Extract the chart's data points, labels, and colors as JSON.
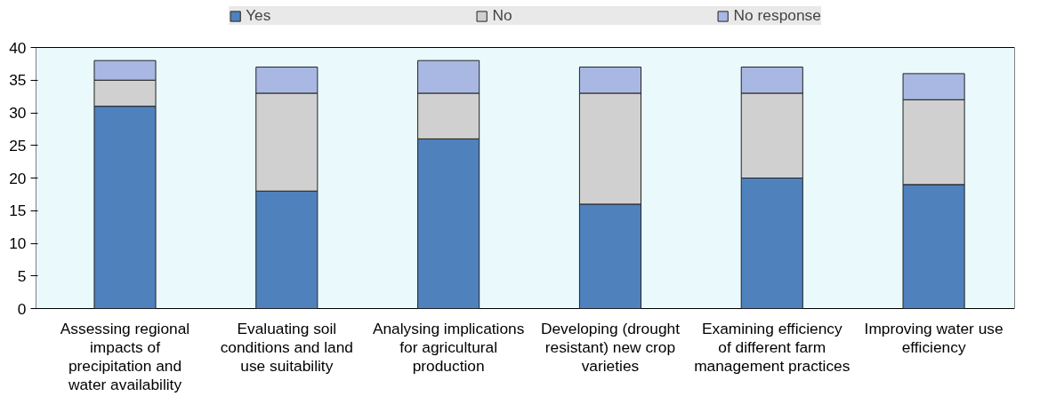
{
  "chart_data": {
    "type": "bar",
    "stacked": true,
    "categories": [
      "Assessing regional impacts of precipitation and water availability",
      "Evaluating soil conditions and land use suitability",
      "Analysing implications for agricultural production",
      "Developing (drought resistant) new crop varieties",
      "Examining efficiency of different farm management practices",
      "Improving water use efficiency"
    ],
    "series": [
      {
        "name": "Yes",
        "color": "#4f81bd",
        "values": [
          31,
          18,
          26,
          16,
          20,
          19
        ]
      },
      {
        "name": "No",
        "color": "#d0d0d0",
        "values": [
          4,
          15,
          7,
          17,
          13,
          13
        ]
      },
      {
        "name": "No response",
        "color": "#a9b8e3",
        "values": [
          3,
          4,
          5,
          4,
          4,
          4
        ]
      }
    ],
    "ylim": [
      0,
      40
    ],
    "yticks": [
      0,
      5,
      10,
      15,
      20,
      25,
      30,
      35,
      40
    ],
    "legend": "top"
  }
}
